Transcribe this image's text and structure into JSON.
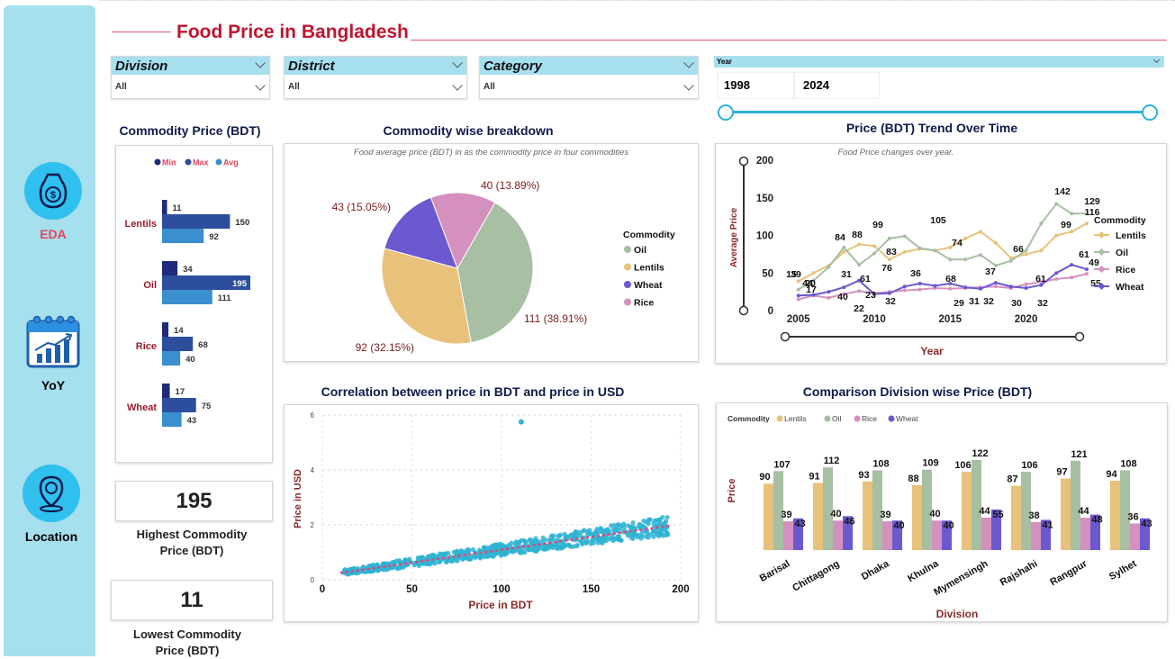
{
  "page": {
    "title": "Food Price in Bangladesh"
  },
  "nav": {
    "items": [
      {
        "label": "EDA",
        "icon": "price-tag-icon",
        "color": "#e8455a"
      },
      {
        "label": "YoY",
        "icon": "calendar-chart-icon",
        "color": "#111111"
      },
      {
        "label": "Location",
        "icon": "location-pin-icon",
        "color": "#111111"
      }
    ]
  },
  "slicers": {
    "division": {
      "label": "Division",
      "value": "All"
    },
    "district": {
      "label": "District",
      "value": "All"
    },
    "category": {
      "label": "Category",
      "value": "All"
    },
    "year": {
      "label": "Year",
      "from": "1998",
      "to": "2024"
    }
  },
  "kpis": {
    "highest": {
      "value": "195",
      "label_line1": "Highest Commodity",
      "label_line2": "Price (BDT)"
    },
    "lowest": {
      "value": "11",
      "label_line1": "Lowest Commodity",
      "label_line2": "Price (BDT)"
    }
  },
  "colors": {
    "min": "#1f2a7a",
    "max": "#2c4e9c",
    "avg": "#3a8fcf",
    "lentils": "#e8c27a",
    "oil": "#a7bfa3",
    "rice": "#d491be",
    "wheat": "#6c58cf",
    "accent": "#c0152f"
  },
  "chart_data": [
    {
      "id": "commodity-price",
      "type": "bar",
      "title": "Commodity Price (BDT)",
      "legend": [
        "Min",
        "Max",
        "Avg"
      ],
      "categories": [
        "Lentils",
        "Oil",
        "Rice",
        "Wheat"
      ],
      "series": [
        {
          "name": "Min",
          "values": [
            11,
            34,
            14,
            17
          ]
        },
        {
          "name": "Max",
          "values": [
            150,
            195,
            68,
            75
          ]
        },
        {
          "name": "Avg",
          "values": [
            92,
            111,
            40,
            43
          ]
        }
      ]
    },
    {
      "id": "commodity-breakdown",
      "type": "pie",
      "title": "Commodity wise breakdown",
      "subtitle": "Food average price (BDT) in as the commodity price in four commodities",
      "legend_title": "Commodity",
      "legend": [
        "Oil",
        "Lentils",
        "Wheat",
        "Rice"
      ],
      "slices": [
        {
          "name": "Oil",
          "value": 111,
          "label": "111 (38.91%)"
        },
        {
          "name": "Lentils",
          "value": 92,
          "label": "92 (32.15%)"
        },
        {
          "name": "Wheat",
          "value": 43,
          "label": "43 (15.05%)"
        },
        {
          "name": "Rice",
          "value": 40,
          "label": "40 (13.89%)"
        }
      ]
    },
    {
      "id": "price-trend",
      "type": "line",
      "title": "Price (BDT) Trend Over Time",
      "subtitle": "Food Price changes over year.",
      "xlabel": "Year",
      "ylabel": "Average Price",
      "xticks": [
        "2005",
        "2010",
        "2015",
        "2020"
      ],
      "yticks": [
        "0",
        "50",
        "100",
        "150",
        "200"
      ],
      "ylim": [
        0,
        200
      ],
      "x": [
        2005,
        2006,
        2007,
        2008,
        2009,
        2010,
        2011,
        2012,
        2013,
        2014,
        2015,
        2016,
        2017,
        2018,
        2019,
        2020,
        2021,
        2022,
        2023,
        2024
      ],
      "legend_title": "Commodity",
      "series": [
        {
          "name": "Lentils",
          "values": [
            39,
            50,
            60,
            78,
            88,
            86,
            68,
            78,
            82,
            80,
            84,
            96,
            105,
            90,
            70,
            75,
            80,
            100,
            105,
            116
          ]
        },
        {
          "name": "Oil",
          "values": [
            28,
            40,
            58,
            84,
            61,
            76,
            96,
            99,
            83,
            80,
            68,
            68,
            74,
            60,
            66,
            80,
            116,
            142,
            129,
            129
          ]
        },
        {
          "name": "Rice",
          "values": [
            15,
            20,
            17,
            22,
            26,
            23,
            25,
            27,
            28,
            30,
            29,
            30,
            31,
            32,
            30,
            35,
            38,
            42,
            44,
            49
          ]
        },
        {
          "name": "Wheat",
          "values": [
            20,
            21,
            25,
            31,
            40,
            22,
            23,
            32,
            36,
            33,
            36,
            31,
            29,
            37,
            32,
            30,
            34,
            50,
            61,
            55
          ]
        }
      ],
      "labels": [
        "15",
        "20",
        "39",
        "44",
        "17",
        "84",
        "88",
        "31",
        "40",
        "61",
        "22",
        "23",
        "99",
        "76",
        "32",
        "83",
        "36",
        "105",
        "68",
        "29",
        "74",
        "31",
        "37",
        "32",
        "66",
        "30",
        "61",
        "32",
        "142",
        "129",
        "99",
        "116",
        "61",
        "49",
        "55"
      ]
    },
    {
      "id": "bdt-usd-correlation",
      "type": "scatter",
      "title": "Correlation between price in BDT and price in USD",
      "xlabel": "Price in BDT",
      "ylabel": "Price in USD",
      "xticks": [
        "0",
        "50",
        "100",
        "150",
        "200"
      ],
      "yticks": [
        "0",
        "2",
        "4",
        "6"
      ],
      "xlim": [
        0,
        200
      ],
      "ylim": [
        0,
        6
      ],
      "trend": {
        "from": [
          10,
          0.25
        ],
        "to": [
          195,
          1.98
        ]
      },
      "outlier": {
        "x": 111,
        "y": 5.75
      }
    },
    {
      "id": "division-comparison",
      "type": "bar",
      "title": "Comparison Division wise Price (BDT)",
      "xlabel": "Division",
      "ylabel": "Price",
      "legend_title": "Commodity",
      "categories": [
        "Barisal",
        "Chittagong",
        "Dhaka",
        "Khulna",
        "Mymensingh",
        "Rajshahi",
        "Rangpur",
        "Sylhet"
      ],
      "series": [
        {
          "name": "Lentils",
          "values": [
            90,
            91,
            93,
            88,
            106,
            87,
            97,
            94
          ]
        },
        {
          "name": "Oil",
          "values": [
            107,
            112,
            108,
            109,
            122,
            106,
            121,
            108
          ]
        },
        {
          "name": "Rice",
          "values": [
            39,
            40,
            39,
            40,
            44,
            38,
            44,
            36
          ]
        },
        {
          "name": "Wheat",
          "values": [
            43,
            46,
            40,
            40,
            55,
            41,
            48,
            43
          ]
        }
      ]
    }
  ]
}
